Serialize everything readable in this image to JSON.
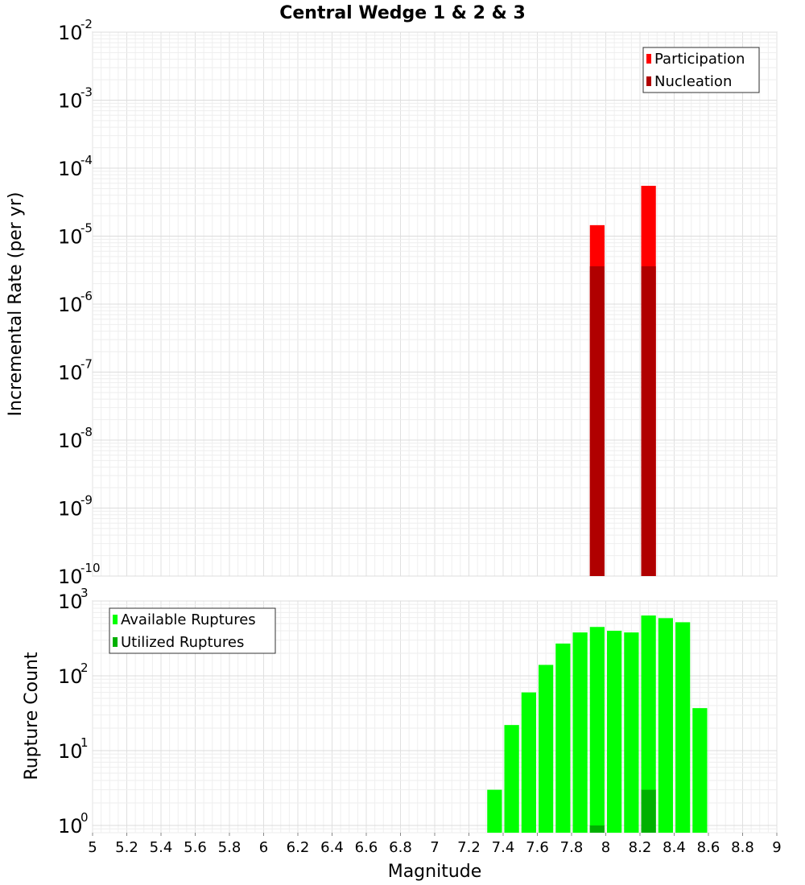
{
  "chart_data": [
    {
      "panel": "top",
      "type": "bar",
      "title": "Central Wedge 1 & 2 & 3",
      "xlabel": "Magnitude",
      "ylabel": "Incremental Rate (per yr)",
      "yscale": "log",
      "xlim": [
        5,
        9
      ],
      "ylim": [
        1e-10,
        0.01
      ],
      "y_ticks": [
        {
          "value": 1e-10,
          "base": "10",
          "exp": "-10"
        },
        {
          "value": 1e-09,
          "base": "10",
          "exp": "-9"
        },
        {
          "value": 1e-08,
          "base": "10",
          "exp": "-8"
        },
        {
          "value": 1e-07,
          "base": "10",
          "exp": "-7"
        },
        {
          "value": 1e-06,
          "base": "10",
          "exp": "-6"
        },
        {
          "value": 1e-05,
          "base": "10",
          "exp": "-5"
        },
        {
          "value": 0.0001,
          "base": "10",
          "exp": "-4"
        },
        {
          "value": 0.001,
          "base": "10",
          "exp": "-3"
        },
        {
          "value": 0.01,
          "base": "10",
          "exp": "-2"
        }
      ],
      "bin_width": 0.1,
      "legend": {
        "position": "top-right",
        "entries": [
          "Participation",
          "Nucleation"
        ]
      },
      "series": [
        {
          "name": "Participation",
          "color": "#ff0000",
          "x": [
            7.95,
            8.25
          ],
          "values": [
            1.45e-05,
            5.5e-05
          ]
        },
        {
          "name": "Nucleation",
          "color": "#b00000",
          "x": [
            7.95,
            8.25
          ],
          "values": [
            3.6e-06,
            3.6e-06
          ]
        }
      ]
    },
    {
      "panel": "bottom",
      "type": "bar",
      "xlabel": "Magnitude",
      "ylabel": "Rupture Count",
      "yscale": "log",
      "xlim": [
        5,
        9
      ],
      "ylim": [
        0.8,
        1000
      ],
      "x_ticks": [
        "5",
        "5.2",
        "5.4",
        "5.6",
        "5.8",
        "6",
        "6.2",
        "6.4",
        "6.6",
        "6.8",
        "7",
        "7.2",
        "7.4",
        "7.6",
        "7.8",
        "8",
        "8.2",
        "8.4",
        "8.6",
        "8.8",
        "9"
      ],
      "y_ticks": [
        {
          "value": 1,
          "base": "10",
          "exp": "0"
        },
        {
          "value": 10,
          "base": "10",
          "exp": "1"
        },
        {
          "value": 100,
          "base": "10",
          "exp": "2"
        },
        {
          "value": 1000,
          "base": "10",
          "exp": "3"
        }
      ],
      "bin_width": 0.1,
      "legend": {
        "position": "top-left",
        "entries": [
          "Available Ruptures",
          "Utilized Ruptures"
        ]
      },
      "series": [
        {
          "name": "Available Ruptures",
          "color": "#00ff00",
          "x": [
            7.35,
            7.45,
            7.55,
            7.65,
            7.75,
            7.85,
            7.95,
            8.05,
            8.15,
            8.25,
            8.35,
            8.45,
            8.55
          ],
          "values": [
            3,
            22,
            60,
            140,
            270,
            380,
            450,
            400,
            380,
            640,
            590,
            520,
            37
          ]
        },
        {
          "name": "Utilized Ruptures",
          "color": "#00b000",
          "x": [
            7.95,
            8.25
          ],
          "values": [
            1,
            3
          ]
        }
      ]
    }
  ]
}
